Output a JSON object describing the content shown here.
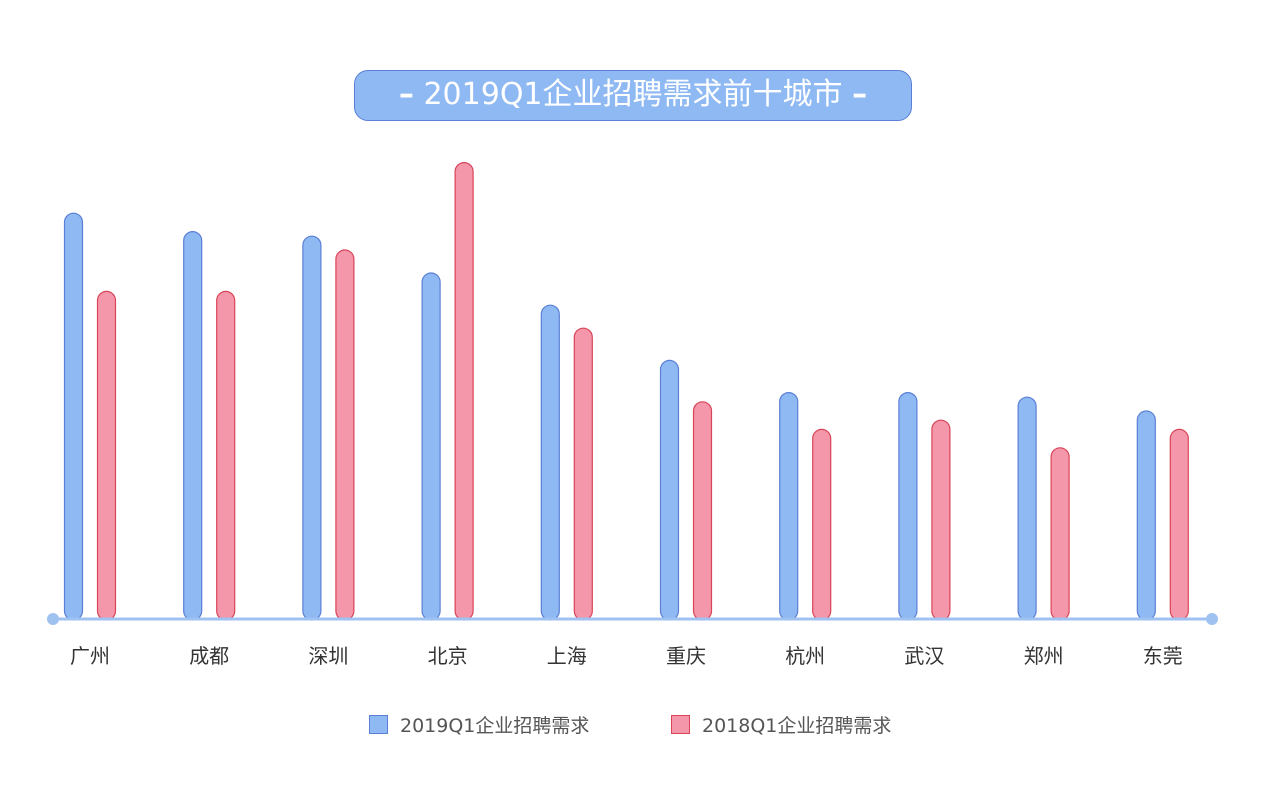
{
  "title": "2019Q1企业招聘需求前十城市",
  "colors": {
    "series_2019": "#8fb9f3",
    "series_2019_border": "#5b7fd6",
    "series_2018": "#f597aa",
    "series_2018_border": "#d94458",
    "axis": "#9fc2f0",
    "label": "#333333"
  },
  "chart_data": {
    "type": "bar",
    "categories": [
      "广州",
      "成都",
      "深圳",
      "北京",
      "上海",
      "重庆",
      "杭州",
      "武汉",
      "郑州",
      "东莞"
    ],
    "series": [
      {
        "name": "2019Q1企业招聘需求",
        "values": [
          88,
          84,
          83,
          75,
          68,
          56,
          49,
          49,
          48,
          45
        ]
      },
      {
        "name": "2018Q1企业招聘需求",
        "values": [
          71,
          71,
          80,
          99,
          63,
          47,
          41,
          43,
          37,
          41
        ]
      }
    ],
    "ylim": [
      0,
      100
    ],
    "grid": false,
    "legend_position": "bottom-center",
    "y_axis_shown": false
  }
}
